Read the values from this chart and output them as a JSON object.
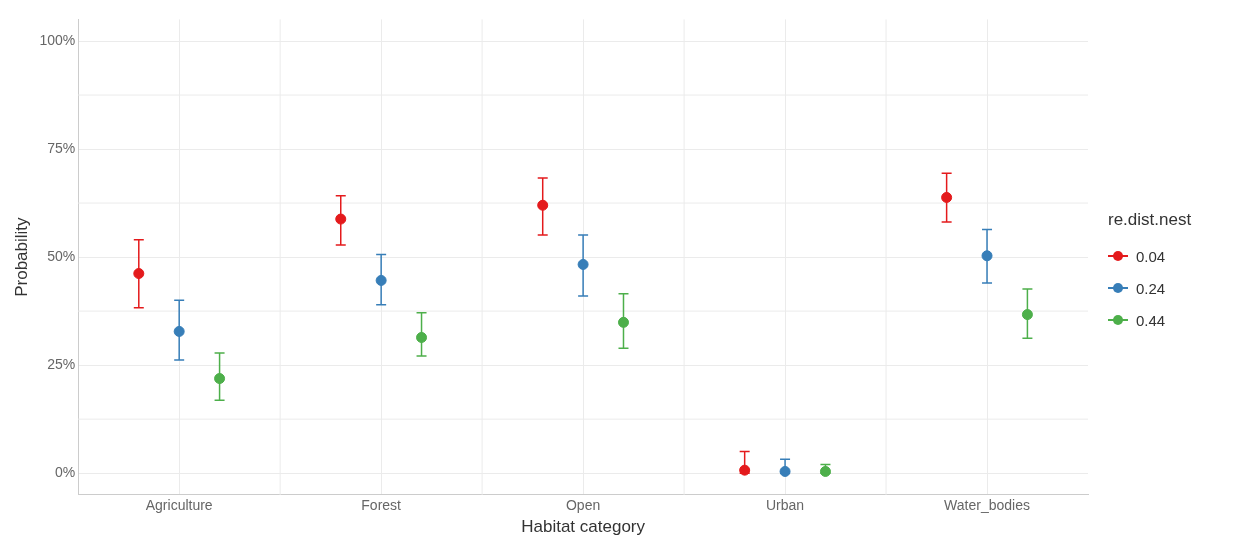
{
  "chart_data": {
    "type": "scatter",
    "xlabel": "Habitat category",
    "ylabel": "Probability",
    "legend_title": "re.dist.nest",
    "legend": "right",
    "grid": true,
    "marker": "circle",
    "categories": [
      "Agriculture",
      "Forest",
      "Open",
      "Urban",
      "Water_bodies"
    ],
    "ylim": [
      -5,
      105
    ],
    "yticks": [
      {
        "value": 0,
        "label": "0%"
      },
      {
        "value": 25,
        "label": "25%"
      },
      {
        "value": 50,
        "label": "50%"
      },
      {
        "value": 75,
        "label": "75%"
      },
      {
        "value": 100,
        "label": "100%"
      }
    ],
    "series": [
      {
        "name": "0.04",
        "color": "#e41a1c",
        "values": [
          46.2,
          58.8,
          62,
          0.7,
          63.8
        ],
        "errors": [
          [
            38.3,
            54
          ],
          [
            52.8,
            64.2
          ],
          [
            55.1,
            68.3
          ],
          [
            0,
            5
          ],
          [
            58.1,
            69.4
          ]
        ]
      },
      {
        "name": "0.24",
        "color": "#377eb8",
        "values": [
          32.8,
          44.6,
          48.3,
          0.4,
          50.3
        ],
        "errors": [
          [
            26.2,
            40
          ],
          [
            39,
            50.6
          ],
          [
            41,
            55.1
          ],
          [
            0,
            3.2
          ],
          [
            44,
            56.4
          ]
        ]
      },
      {
        "name": "0.44",
        "color": "#4daf4a",
        "values": [
          21.9,
          31.4,
          34.9,
          0.4,
          36.7
        ],
        "errors": [
          [
            16.9,
            27.8
          ],
          [
            27.1,
            37.1
          ],
          [
            28.9,
            41.5
          ],
          [
            0,
            2
          ],
          [
            31.2,
            42.6
          ]
        ]
      }
    ]
  }
}
